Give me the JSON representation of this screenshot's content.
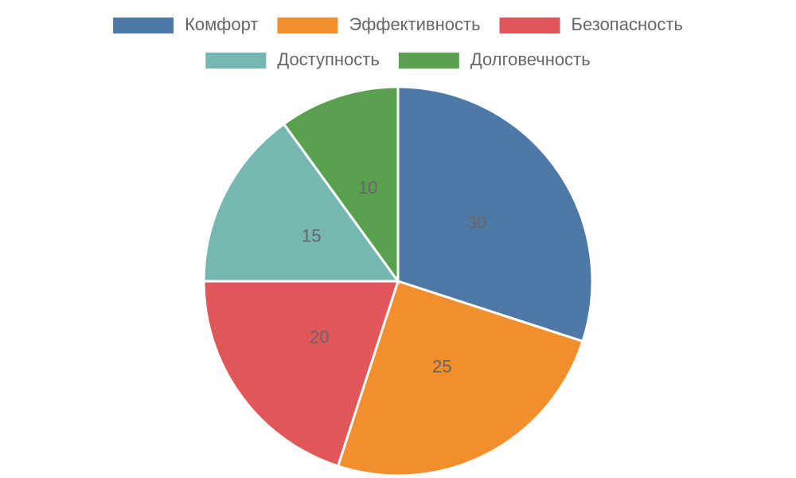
{
  "chart_data": {
    "type": "pie",
    "categories": [
      "Комфорт",
      "Эффективность",
      "Безопасность",
      "Доступность",
      "Долговечность"
    ],
    "values": [
      30,
      25,
      20,
      15,
      10
    ],
    "colors": [
      "#4e79a7",
      "#f28e2b",
      "#e15759",
      "#76b7b2",
      "#59a14f"
    ]
  }
}
